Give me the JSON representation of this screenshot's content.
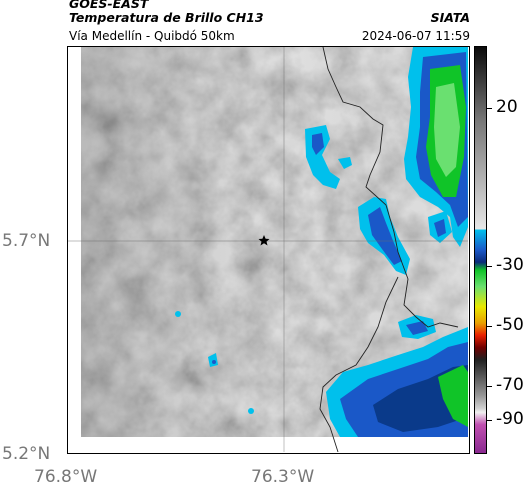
{
  "header": {
    "satellite": "GOES-EAST",
    "product": "Temperatura de Brillo CH13",
    "route": "Vía Medellín - Quibdó 50km",
    "organization": "SIATA",
    "timestamp": "2024-06-07 11:59"
  },
  "map": {
    "marker": "star-icon",
    "lat_labels": [
      "5.7°N",
      "5.2°N"
    ],
    "lon_labels": [
      "76.8°W",
      "76.3°W"
    ]
  },
  "colorbar": {
    "labels": [
      "20",
      "-30",
      "-50",
      "-70",
      "-90"
    ],
    "colors": {
      "warm_top": "#111111",
      "gray_mid": "#9a9a9a",
      "cyan": "#00b8e8",
      "blue": "#1060c8",
      "green": "#10c020",
      "yellow": "#e8e800",
      "red": "#e82000",
      "dark": "#202020",
      "magenta": "#c050b0"
    }
  }
}
